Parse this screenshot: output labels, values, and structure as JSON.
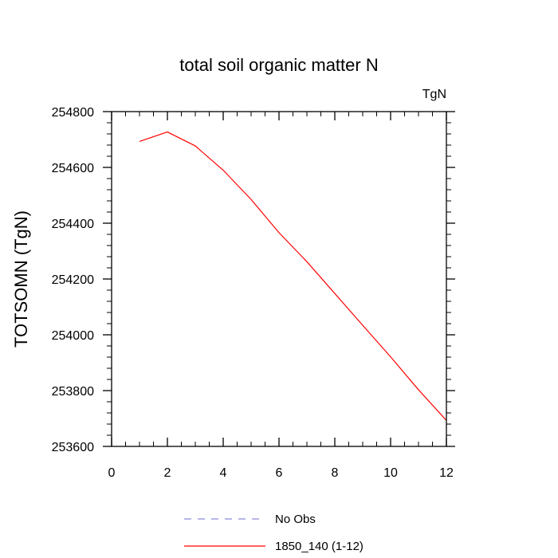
{
  "chart_data": {
    "type": "line",
    "title": "total soil organic matter N",
    "units_label": "TgN",
    "ylabel": "TOTSOMN  (TgN)",
    "xlabel": "",
    "xlim": [
      0,
      12
    ],
    "ylim": [
      253600,
      254800
    ],
    "x_ticks": [
      0,
      2,
      4,
      6,
      8,
      10,
      12
    ],
    "y_ticks": [
      253600,
      253800,
      254000,
      254200,
      254400,
      254600,
      254800
    ],
    "grid": false,
    "legend_position": "bottom-center",
    "series": [
      {
        "name": "No Obs",
        "color": "#8c8cdc",
        "style": "dashed",
        "x": [],
        "y": []
      },
      {
        "name": "1850_140 (1-12)",
        "color": "#ff0000",
        "style": "solid",
        "x": [
          1,
          2,
          3,
          4,
          5,
          6,
          7,
          8,
          9,
          10,
          11,
          12
        ],
        "y": [
          254693,
          254727,
          254677,
          254590,
          254485,
          254366,
          254262,
          254148,
          254034,
          253921,
          253803,
          253693
        ]
      }
    ]
  }
}
